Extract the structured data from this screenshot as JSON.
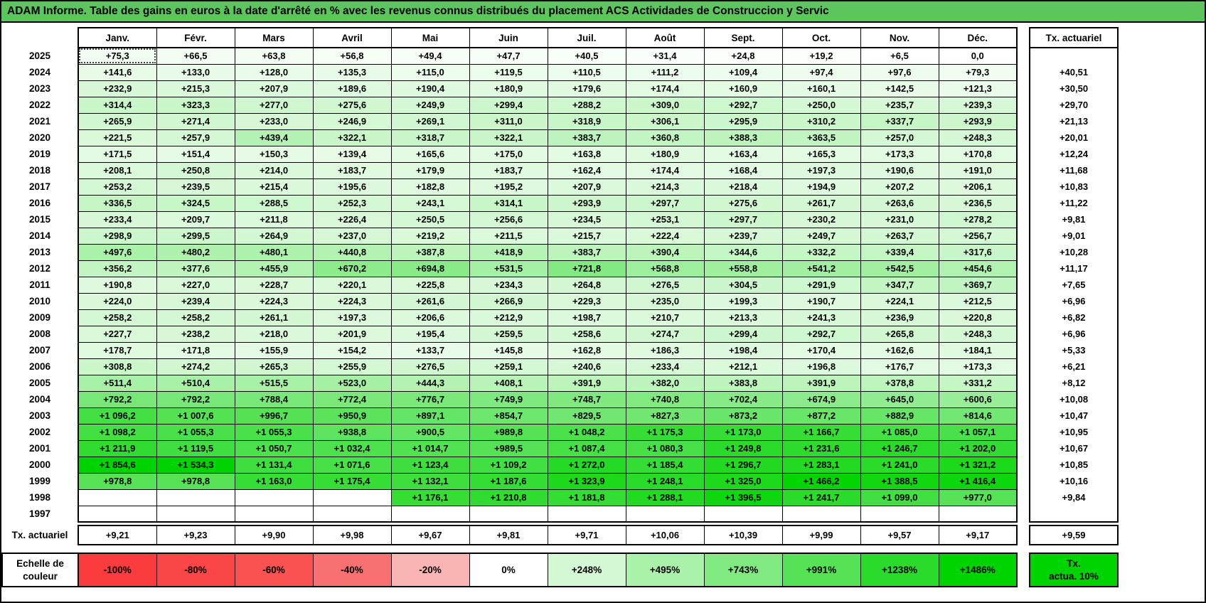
{
  "title": "ADAM Informe. Table des gains en euros à la date d'arrêté en % avec les revenus connus distribués du placement ACS Actividades de Construccion y Servic",
  "months": [
    "Janv.",
    "Févr.",
    "Mars",
    "Avril",
    "Mai",
    "Juin",
    "Juil.",
    "Août",
    "Sept.",
    "Oct.",
    "Nov.",
    "Déc."
  ],
  "right_column": {
    "header": "Tx. actuariel"
  },
  "selected_cell": {
    "row": 0,
    "col": 0
  },
  "colors": {
    "title_bar": "#5cc55c"
  },
  "heat_scale": {
    "min": -100,
    "max": 1486,
    "max_color": "#00d400"
  },
  "rows": [
    {
      "year": "2025",
      "values": [
        "+75,3",
        "+66,5",
        "+63,8",
        "+56,8",
        "+49,4",
        "+47,7",
        "+40,5",
        "+31,4",
        "+24,8",
        "+19,2",
        "+6,5",
        "0,0"
      ],
      "tx": ""
    },
    {
      "year": "2024",
      "values": [
        "+141,6",
        "+133,0",
        "+128,0",
        "+135,3",
        "+115,0",
        "+119,5",
        "+110,5",
        "+111,2",
        "+109,4",
        "+97,4",
        "+97,6",
        "+79,3"
      ],
      "tx": "+40,51"
    },
    {
      "year": "2023",
      "values": [
        "+232,9",
        "+215,3",
        "+207,9",
        "+189,6",
        "+190,4",
        "+180,9",
        "+179,6",
        "+174,4",
        "+160,9",
        "+160,1",
        "+142,5",
        "+121,3"
      ],
      "tx": "+30,50"
    },
    {
      "year": "2022",
      "values": [
        "+314,4",
        "+323,3",
        "+277,0",
        "+275,6",
        "+249,9",
        "+299,4",
        "+288,2",
        "+309,0",
        "+292,7",
        "+250,0",
        "+235,7",
        "+239,3"
      ],
      "tx": "+29,70"
    },
    {
      "year": "2021",
      "values": [
        "+265,9",
        "+271,4",
        "+233,0",
        "+246,9",
        "+269,1",
        "+311,0",
        "+318,9",
        "+306,1",
        "+295,9",
        "+310,2",
        "+337,7",
        "+293,9"
      ],
      "tx": "+21,13"
    },
    {
      "year": "2020",
      "values": [
        "+221,5",
        "+257,9",
        "+439,4",
        "+322,1",
        "+318,7",
        "+322,1",
        "+383,7",
        "+360,8",
        "+388,3",
        "+363,5",
        "+257,0",
        "+248,3"
      ],
      "tx": "+20,01"
    },
    {
      "year": "2019",
      "values": [
        "+171,5",
        "+151,4",
        "+150,3",
        "+139,4",
        "+165,6",
        "+175,0",
        "+163,8",
        "+180,9",
        "+163,4",
        "+165,3",
        "+173,3",
        "+170,8"
      ],
      "tx": "+12,24"
    },
    {
      "year": "2018",
      "values": [
        "+208,1",
        "+250,8",
        "+214,0",
        "+183,7",
        "+179,9",
        "+183,7",
        "+162,4",
        "+174,4",
        "+168,4",
        "+197,3",
        "+190,6",
        "+191,0"
      ],
      "tx": "+11,68"
    },
    {
      "year": "2017",
      "values": [
        "+253,2",
        "+239,5",
        "+215,4",
        "+195,6",
        "+182,8",
        "+195,2",
        "+207,9",
        "+214,3",
        "+218,4",
        "+194,9",
        "+207,2",
        "+206,1"
      ],
      "tx": "+10,83"
    },
    {
      "year": "2016",
      "values": [
        "+336,5",
        "+324,5",
        "+288,5",
        "+252,3",
        "+243,1",
        "+314,1",
        "+293,9",
        "+297,7",
        "+275,6",
        "+261,7",
        "+263,6",
        "+236,5"
      ],
      "tx": "+11,22"
    },
    {
      "year": "2015",
      "values": [
        "+233,4",
        "+209,7",
        "+211,8",
        "+226,4",
        "+250,5",
        "+256,6",
        "+234,5",
        "+253,1",
        "+297,7",
        "+230,2",
        "+231,0",
        "+278,2"
      ],
      "tx": "+9,81"
    },
    {
      "year": "2014",
      "values": [
        "+298,9",
        "+299,5",
        "+264,9",
        "+237,0",
        "+219,2",
        "+211,5",
        "+215,7",
        "+222,4",
        "+239,7",
        "+249,7",
        "+263,7",
        "+256,7"
      ],
      "tx": "+9,01"
    },
    {
      "year": "2013",
      "values": [
        "+497,6",
        "+480,2",
        "+480,1",
        "+440,8",
        "+387,8",
        "+418,9",
        "+383,7",
        "+390,4",
        "+344,6",
        "+332,2",
        "+339,4",
        "+317,6"
      ],
      "tx": "+10,28"
    },
    {
      "year": "2012",
      "values": [
        "+356,2",
        "+377,6",
        "+455,9",
        "+670,2",
        "+694,8",
        "+531,5",
        "+721,8",
        "+568,8",
        "+558,8",
        "+541,2",
        "+542,5",
        "+454,6"
      ],
      "tx": "+11,17"
    },
    {
      "year": "2011",
      "values": [
        "+190,8",
        "+227,0",
        "+228,7",
        "+220,1",
        "+225,8",
        "+234,3",
        "+264,8",
        "+276,5",
        "+304,5",
        "+291,9",
        "+347,7",
        "+369,7"
      ],
      "tx": "+7,65"
    },
    {
      "year": "2010",
      "values": [
        "+224,0",
        "+239,4",
        "+224,3",
        "+224,3",
        "+261,6",
        "+266,9",
        "+229,3",
        "+235,0",
        "+199,3",
        "+190,7",
        "+224,1",
        "+212,5"
      ],
      "tx": "+6,96"
    },
    {
      "year": "2009",
      "values": [
        "+258,2",
        "+258,2",
        "+261,1",
        "+197,3",
        "+206,6",
        "+212,9",
        "+198,7",
        "+210,7",
        "+213,3",
        "+241,3",
        "+236,9",
        "+220,8"
      ],
      "tx": "+6,82"
    },
    {
      "year": "2008",
      "values": [
        "+227,7",
        "+238,2",
        "+218,0",
        "+201,9",
        "+195,4",
        "+259,5",
        "+258,6",
        "+274,7",
        "+299,4",
        "+292,7",
        "+265,8",
        "+248,3"
      ],
      "tx": "+6,96"
    },
    {
      "year": "2007",
      "values": [
        "+178,7",
        "+171,8",
        "+155,9",
        "+154,2",
        "+133,7",
        "+145,8",
        "+162,8",
        "+186,3",
        "+198,4",
        "+170,4",
        "+162,6",
        "+184,1"
      ],
      "tx": "+5,33"
    },
    {
      "year": "2006",
      "values": [
        "+308,8",
        "+274,2",
        "+265,3",
        "+255,9",
        "+276,5",
        "+259,1",
        "+240,6",
        "+233,4",
        "+212,1",
        "+196,8",
        "+176,7",
        "+173,3"
      ],
      "tx": "+6,21"
    },
    {
      "year": "2005",
      "values": [
        "+511,4",
        "+510,4",
        "+515,5",
        "+523,0",
        "+444,3",
        "+408,1",
        "+391,9",
        "+382,0",
        "+383,8",
        "+391,9",
        "+378,8",
        "+331,2"
      ],
      "tx": "+8,12"
    },
    {
      "year": "2004",
      "values": [
        "+792,2",
        "+792,2",
        "+788,4",
        "+772,4",
        "+776,7",
        "+749,9",
        "+748,7",
        "+740,8",
        "+702,4",
        "+674,9",
        "+645,0",
        "+600,6"
      ],
      "tx": "+10,08"
    },
    {
      "year": "2003",
      "values": [
        "+1 096,2",
        "+1 007,6",
        "+996,7",
        "+950,9",
        "+897,1",
        "+854,7",
        "+829,5",
        "+827,3",
        "+873,2",
        "+877,2",
        "+882,9",
        "+814,6"
      ],
      "tx": "+10,47"
    },
    {
      "year": "2002",
      "values": [
        "+1 098,2",
        "+1 055,3",
        "+1 055,3",
        "+938,8",
        "+900,5",
        "+989,8",
        "+1 048,2",
        "+1 175,3",
        "+1 173,0",
        "+1 166,7",
        "+1 085,0",
        "+1 057,1"
      ],
      "tx": "+10,95"
    },
    {
      "year": "2001",
      "values": [
        "+1 211,9",
        "+1 119,5",
        "+1 050,7",
        "+1 032,4",
        "+1 014,7",
        "+989,5",
        "+1 087,4",
        "+1 080,3",
        "+1 249,8",
        "+1 231,6",
        "+1 246,7",
        "+1 202,0"
      ],
      "tx": "+10,67"
    },
    {
      "year": "2000",
      "values": [
        "+1 854,6",
        "+1 534,3",
        "+1 131,4",
        "+1 071,6",
        "+1 123,4",
        "+1 109,2",
        "+1 272,0",
        "+1 185,4",
        "+1 296,7",
        "+1 283,1",
        "+1 241,0",
        "+1 321,2"
      ],
      "tx": "+10,85"
    },
    {
      "year": "1999",
      "values": [
        "+978,8",
        "+978,8",
        "+1 163,0",
        "+1 175,4",
        "+1 132,1",
        "+1 187,6",
        "+1 323,9",
        "+1 248,1",
        "+1 325,0",
        "+1 466,2",
        "+1 388,5",
        "+1 416,4"
      ],
      "tx": "+10,16"
    },
    {
      "year": "1998",
      "values": [
        "",
        "",
        "",
        "",
        "+1 176,1",
        "+1 210,8",
        "+1 181,8",
        "+1 288,1",
        "+1 396,5",
        "+1 241,7",
        "+1 099,0",
        "+977,0"
      ],
      "tx": "+9,84"
    },
    {
      "year": "1997",
      "values": [
        "",
        "",
        "",
        "",
        "",
        "",
        "",
        "",
        "",
        "",
        "",
        ""
      ],
      "tx": ""
    }
  ],
  "bottom_row": {
    "label": "Tx. actuariel",
    "values": [
      "+9,21",
      "+9,23",
      "+9,90",
      "+9,98",
      "+9,67",
      "+9,81",
      "+9,71",
      "+10,06",
      "+10,39",
      "+9,99",
      "+9,57",
      "+9,17"
    ],
    "right_value": "+9,59"
  },
  "legend": {
    "label": "Echelle de couleur",
    "cells": [
      {
        "label": "-100%",
        "color": "#fa3c3c"
      },
      {
        "label": "-80%",
        "color": "#fa4646"
      },
      {
        "label": "-60%",
        "color": "#fa5151"
      },
      {
        "label": "-40%",
        "color": "#f97070"
      },
      {
        "label": "-20%",
        "color": "#fbb4b4"
      },
      {
        "label": "0%",
        "color": "#ffffff"
      },
      {
        "label": "+248%",
        "color": "#d4f8d4"
      },
      {
        "label": "+495%",
        "color": "#aaf1aa"
      },
      {
        "label": "+743%",
        "color": "#80ea80"
      },
      {
        "label": "+991%",
        "color": "#55e355"
      },
      {
        "label": "+1238%",
        "color": "#2bdb2b"
      },
      {
        "label": "+1486%",
        "color": "#00d400"
      }
    ],
    "tx_box": {
      "label": "Tx.\nactua. 10%",
      "color": "#00d400"
    }
  }
}
